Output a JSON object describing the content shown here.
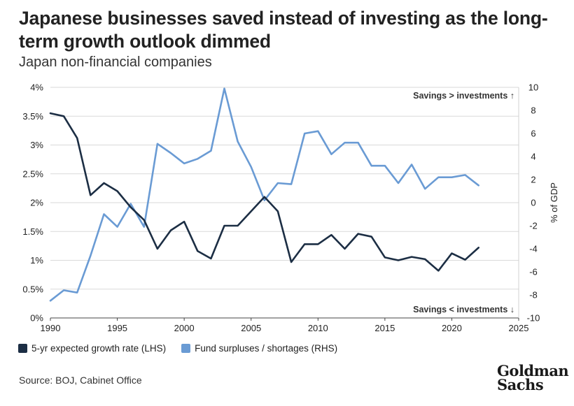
{
  "title": "Japanese businesses saved instead of investing as the long-term growth outlook dimmed",
  "subtitle": "Japan non-financial companies",
  "source": "Source: BOJ, Cabinet Office",
  "logo_text": "Goldman Sachs",
  "legend": {
    "items": [
      {
        "label": "5-yr expected growth rate (LHS)",
        "color": "#1c2e44"
      },
      {
        "label": "Fund surpluses / shortages (RHS)",
        "color": "#6a9bd4"
      }
    ]
  },
  "annotations": {
    "top": "Savings > investments ↑",
    "bottom": "Savings < investments ↓"
  },
  "chart_data": {
    "type": "line",
    "title": "Japanese businesses saved instead of investing as the long-term growth outlook dimmed",
    "subtitle": "Japan non-financial companies",
    "xlabel": "",
    "ylabel_left": "",
    "ylabel_right": "% of GDP",
    "xlim": [
      1990,
      2025
    ],
    "x_ticks": [
      "1990",
      "1995",
      "2000",
      "2005",
      "2010",
      "2015",
      "2020",
      "2025"
    ],
    "ylim_left": [
      0,
      4
    ],
    "y_ticks_left": [
      "0%",
      "0.5%",
      "1%",
      "1.5%",
      "2%",
      "2.5%",
      "3%",
      "3.5%",
      "4%"
    ],
    "ylim_right": [
      -10,
      10
    ],
    "y_ticks_right": [
      "-10",
      "-8",
      "-6",
      "-4",
      "-2",
      "0",
      "2",
      "4",
      "6",
      "8",
      "10"
    ],
    "grid": "horizontal",
    "legend_position": "bottom-left",
    "series": [
      {
        "name": "5-yr expected growth rate (LHS)",
        "axis": "left",
        "color": "#1c2e44",
        "x": [
          1990,
          1991,
          1992,
          1993,
          1994,
          1995,
          1996,
          1997,
          1998,
          1999,
          2000,
          2001,
          2002,
          2003,
          2004,
          2005,
          2006,
          2007,
          2008,
          2009,
          2010,
          2011,
          2012,
          2013,
          2014,
          2015,
          2016,
          2017,
          2018,
          2019,
          2020,
          2021,
          2022
        ],
        "values": [
          3.55,
          3.5,
          3.12,
          2.13,
          2.34,
          2.2,
          1.92,
          1.7,
          1.2,
          1.52,
          1.67,
          1.16,
          1.03,
          1.6,
          1.6,
          1.85,
          2.1,
          1.85,
          0.97,
          1.28,
          1.28,
          1.44,
          1.2,
          1.46,
          1.41,
          1.05,
          1.0,
          1.06,
          1.02,
          0.82,
          1.12,
          1.01,
          1.22
        ]
      },
      {
        "name": "Fund surpluses / shortages (RHS)",
        "axis": "right",
        "color": "#6a9bd4",
        "x": [
          1990,
          1991,
          1992,
          1993,
          1994,
          1995,
          1996,
          1997,
          1998,
          1999,
          2000,
          2001,
          2002,
          2003,
          2004,
          2005,
          2006,
          2007,
          2008,
          2009,
          2010,
          2011,
          2012,
          2013,
          2014,
          2015,
          2016,
          2017,
          2018,
          2019,
          2020,
          2021,
          2022
        ],
        "values": [
          -8.5,
          -7.6,
          -7.8,
          -4.6,
          -1.0,
          -2.1,
          -0.1,
          -2.1,
          5.1,
          4.3,
          3.4,
          3.8,
          4.5,
          9.9,
          5.3,
          3.1,
          0.2,
          1.7,
          1.6,
          6.0,
          6.2,
          4.2,
          5.2,
          5.2,
          3.2,
          3.2,
          1.7,
          3.3,
          1.2,
          2.2,
          2.2,
          2.4,
          1.5
        ]
      }
    ]
  }
}
